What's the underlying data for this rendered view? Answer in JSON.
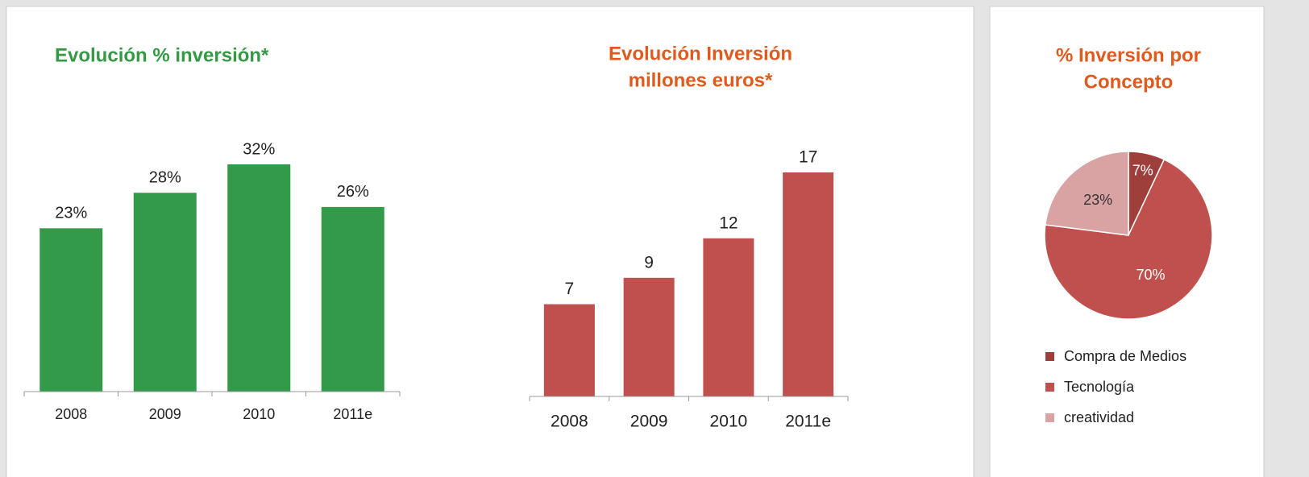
{
  "chart_data": [
    {
      "type": "bar",
      "title": [
        "Evolución % inversión*"
      ],
      "categories": [
        "2008",
        "2009",
        "2010",
        "2011e"
      ],
      "values": [
        23,
        28,
        32,
        26
      ],
      "value_labels": [
        "23%",
        "28%",
        "32%",
        "26%"
      ],
      "color": "#339a4a"
    },
    {
      "type": "bar",
      "title": [
        "Evolución Inversión",
        "millones euros*"
      ],
      "categories": [
        "2008",
        "2009",
        "2010",
        "2011e"
      ],
      "values": [
        7,
        9,
        12,
        17
      ],
      "color": "#c0504d"
    },
    {
      "type": "pie",
      "title": [
        "% Inversión por",
        "Concepto"
      ],
      "categories": [
        "Compra de Medios",
        "Tecnología",
        "creatividad"
      ],
      "values": [
        7,
        70,
        23
      ],
      "value_labels": [
        "7%",
        "70%",
        "23%"
      ],
      "colors": [
        "#9e3f3c",
        "#c0504d",
        "#d9a3a3"
      ]
    }
  ]
}
